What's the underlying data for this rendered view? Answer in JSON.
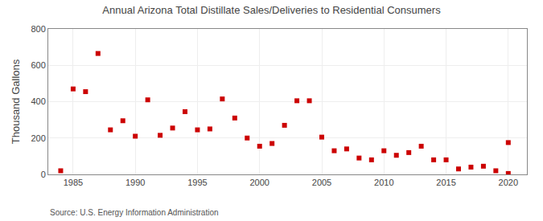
{
  "chart_data": {
    "type": "scatter",
    "title": "Annual Arizona Total Distillate Sales/Deliveries to Residential Consumers",
    "y_label": "Thousand Gallons",
    "annotations": [
      "Source: U.S. Energy Information Administration"
    ],
    "x": [
      1984,
      1985,
      1986,
      1987,
      1988,
      1989,
      1990,
      1991,
      1992,
      1993,
      1994,
      1995,
      1996,
      1997,
      1998,
      1999,
      2000,
      2001,
      2002,
      2003,
      2004,
      2005,
      2006,
      2007,
      2008,
      2009,
      2010,
      2011,
      2012,
      2013,
      2014,
      2015,
      2016,
      2017,
      2018,
      2019,
      2020,
      2020
    ],
    "values": [
      20,
      470,
      455,
      665,
      245,
      295,
      210,
      410,
      215,
      255,
      345,
      245,
      250,
      415,
      310,
      200,
      155,
      170,
      270,
      405,
      405,
      205,
      130,
      140,
      90,
      80,
      130,
      105,
      120,
      155,
      80,
      80,
      30,
      40,
      45,
      20,
      5,
      175
    ],
    "color": "#cc0000",
    "marker": "square",
    "xlim": [
      1983.0,
      2021.5
    ],
    "xticks": [
      1985,
      1990,
      1995,
      2000,
      2005,
      2010,
      2015,
      2020
    ],
    "ylim": [
      0,
      800
    ],
    "yticks": [
      0,
      200,
      400,
      600,
      800
    ],
    "grid": true
  }
}
